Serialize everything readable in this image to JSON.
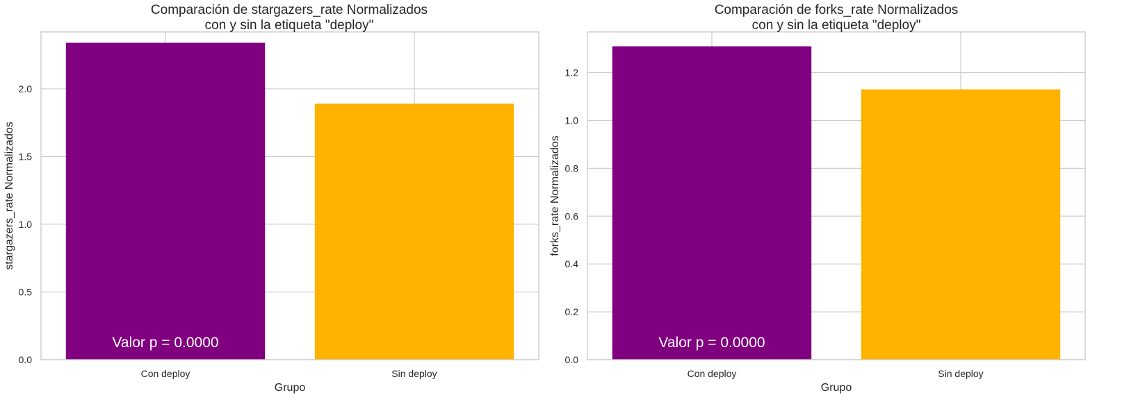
{
  "chart_data": [
    {
      "type": "bar",
      "title_lines": [
        "Comparación de stargazers_rate Normalizados",
        "con y sin la etiqueta \"deploy\""
      ],
      "xlabel": "Grupo",
      "ylabel": "stargazers_rate Normalizados",
      "categories": [
        "Con deploy",
        "Sin deploy"
      ],
      "values": [
        2.34,
        1.89
      ],
      "colors": [
        "#800080",
        "#ffb300"
      ],
      "ylim": [
        0,
        2.42
      ],
      "yticks": [
        0.0,
        0.5,
        1.0,
        1.5,
        2.0
      ],
      "ytick_labels": [
        "0.0",
        "0.5",
        "1.0",
        "1.5",
        "2.0"
      ],
      "grid": true,
      "annotation": "Valor p = 0.0000"
    },
    {
      "type": "bar",
      "title_lines": [
        "Comparación de forks_rate Normalizados",
        "con y sin la etiqueta \"deploy\""
      ],
      "xlabel": "Grupo",
      "ylabel": "forks_rate Normalizados",
      "categories": [
        "Con deploy",
        "Sin deploy"
      ],
      "values": [
        1.31,
        1.13
      ],
      "colors": [
        "#800080",
        "#ffb300"
      ],
      "ylim": [
        0,
        1.37
      ],
      "yticks": [
        0.0,
        0.2,
        0.4,
        0.6,
        0.8,
        1.0,
        1.2
      ],
      "ytick_labels": [
        "0.0",
        "0.2",
        "0.4",
        "0.6",
        "0.8",
        "1.0",
        "1.2"
      ],
      "grid": true,
      "annotation": "Valor p = 0.0000"
    }
  ]
}
